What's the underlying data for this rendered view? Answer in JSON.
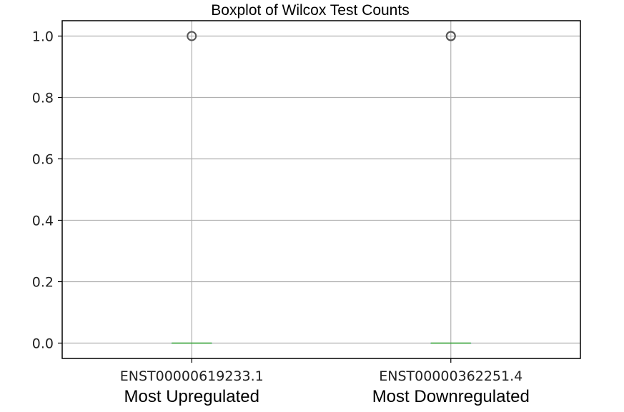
{
  "chart_data": {
    "type": "box",
    "title": "Boxplot of Wilcox Test Counts",
    "xlabel": "",
    "ylabel": "",
    "ylim": [
      -0.05,
      1.05
    ],
    "yticks": [
      0.0,
      0.2,
      0.4,
      0.6,
      0.8,
      1.0
    ],
    "ytick_labels": [
      "0.0",
      "0.2",
      "0.4",
      "0.6",
      "0.8",
      "1.0"
    ],
    "grid": true,
    "categories": [
      {
        "tick_label": "ENST00000619233.1",
        "sublabel": "Most Upregulated"
      },
      {
        "tick_label": "ENST00000362251.4",
        "sublabel": "Most Downregulated"
      }
    ],
    "boxes": [
      {
        "q1": 0.0,
        "median": 0.0,
        "q3": 0.0,
        "whisker_low": 0.0,
        "whisker_high": 0.0,
        "outliers": [
          1.0
        ]
      },
      {
        "q1": 0.0,
        "median": 0.0,
        "q3": 0.0,
        "whisker_low": 0.0,
        "whisker_high": 0.0,
        "outliers": [
          1.0,
          1.0
        ]
      }
    ],
    "colors": {
      "median": "#2ca02c",
      "box": "#1f77b4",
      "grid": "#b0b0b0",
      "frame": "#000000",
      "outlier": "#555555"
    }
  }
}
